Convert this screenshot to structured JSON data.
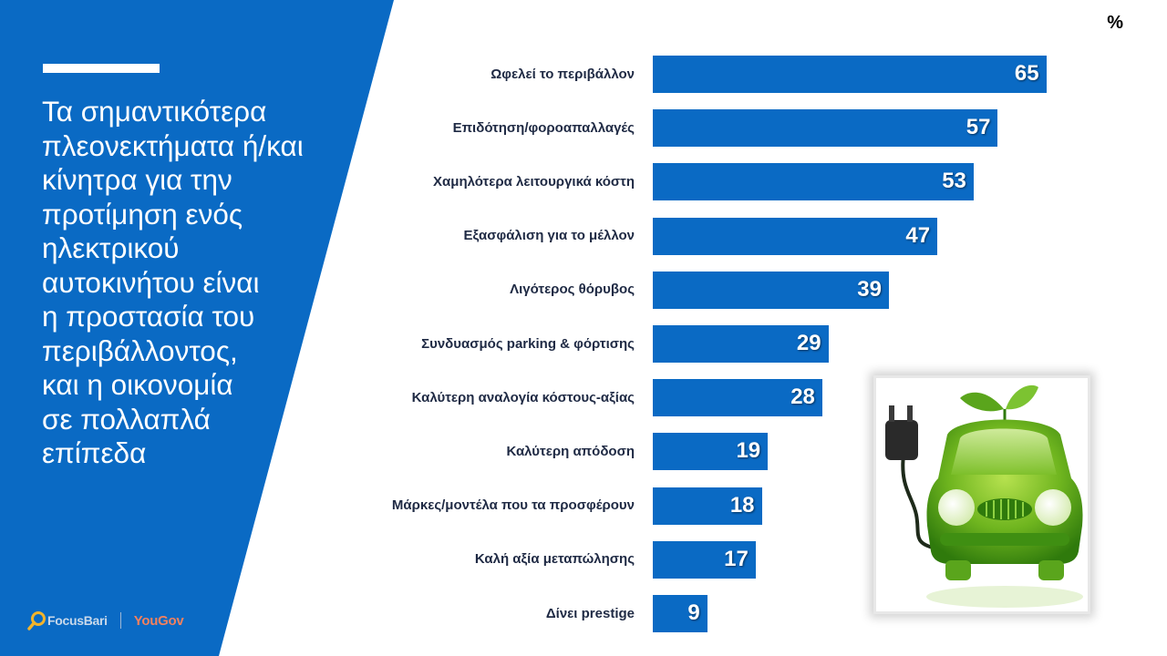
{
  "headline": "Τα σημαντικότερα\nπλεονεκτήματα ή/και\nκίνητρα για την\nπροτίμηση ενός\nηλεκτρικού\nαυτοκινήτου είναι\nη προστασία του\nπεριβάλλοντος,\nκαι η οικονομία\nσε πολλαπλά\nεπίπεδα",
  "unit": "%",
  "logos": {
    "focusbari": "FocusBari",
    "yougov": "YouGov"
  },
  "colors": {
    "panel": "#0a6ac4",
    "bar": "#0a6ac4",
    "label": "#1f2a44"
  },
  "chart_data": {
    "type": "bar",
    "orientation": "horizontal",
    "categories": [
      "Ωφελεί το περιβάλλον",
      "Επιδότηση/φοροαπαλλαγές",
      "Χαμηλότερα λειτουργικά κόστη",
      "Εξασφάλιση για το μέλλον",
      "Λιγότερος θόρυβος",
      "Συνδυασμός parking & φόρτισης",
      "Καλύτερη αναλογία κόστους-αξίας",
      "Καλύτερη απόδοση",
      "Μάρκες/μοντέλα που τα προσφέρουν",
      "Καλή αξία μεταπώλησης",
      "Δίνει prestige"
    ],
    "values": [
      65,
      57,
      53,
      47,
      39,
      29,
      28,
      19,
      18,
      17,
      9
    ],
    "xlim": [
      0,
      100
    ],
    "grid": false,
    "data_labels": true
  }
}
